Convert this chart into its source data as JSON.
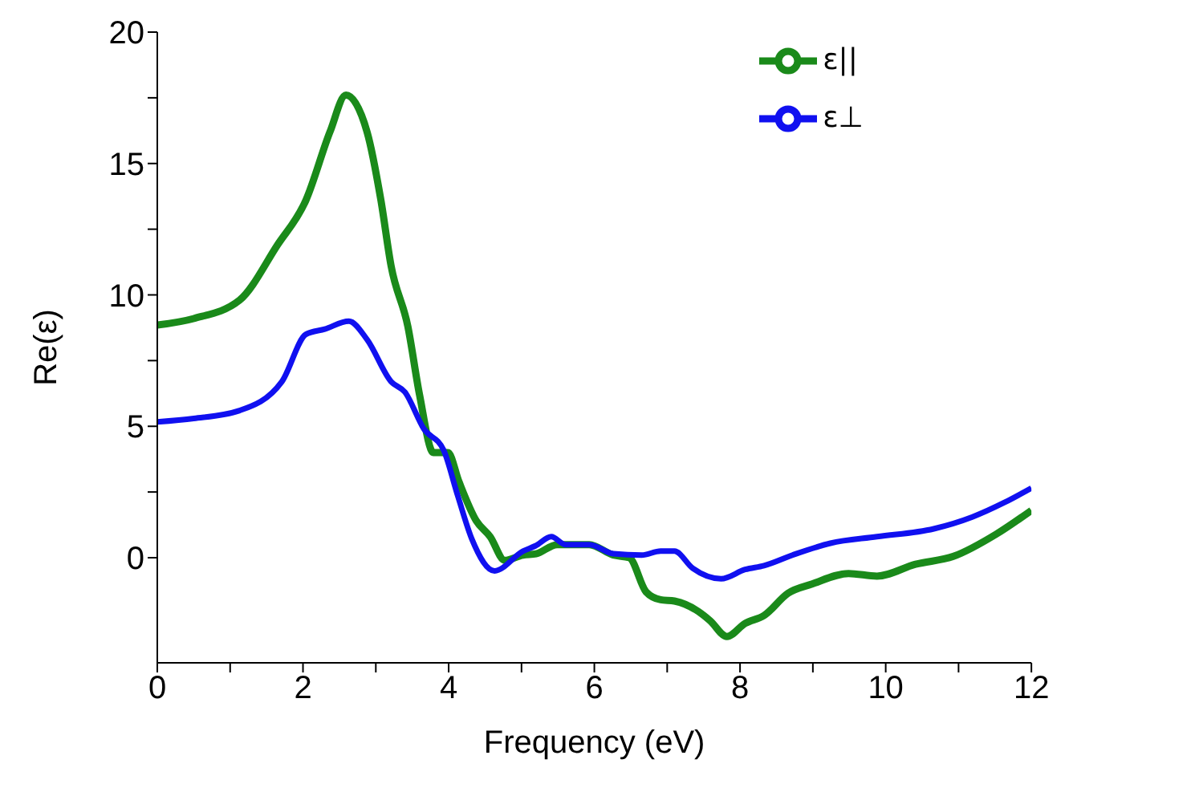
{
  "chart_data": {
    "type": "line",
    "xlabel": "Frequency (eV)",
    "ylabel": "Re(ε)",
    "xlim": [
      0,
      12
    ],
    "xticks": [
      0,
      {
        "value": 1,
        "label": null
      },
      2,
      {
        "value": 3,
        "label": null
      },
      4,
      {
        "value": 5,
        "label": null
      },
      6,
      {
        "value": 7,
        "label": null
      },
      8,
      {
        "value": 9,
        "label": null
      },
      10,
      {
        "value": 11,
        "label": null
      },
      12
    ],
    "ylim": [
      -4,
      20
    ],
    "yticks": [
      0,
      {
        "value": 2.5,
        "label": null
      },
      5,
      {
        "value": 7.5,
        "label": null
      },
      10,
      {
        "value": 12.5,
        "label": null
      },
      15,
      {
        "value": 17.5,
        "label": null
      },
      20
    ],
    "grid": false,
    "legend": "top right",
    "marker": "none",
    "line_style": "solid",
    "series": [
      {
        "name": "ε||",
        "color": "#1a8a1a",
        "x": [
          0,
          0.5,
          1.13,
          1.65,
          2.04,
          2.37,
          2.59,
          2.88,
          3.07,
          3.21,
          3.44,
          3.6,
          3.79,
          3.99,
          4.14,
          4.38,
          4.57,
          4.77,
          5.02,
          5.2,
          5.49,
          5.74,
          5.93,
          6.26,
          6.48,
          6.71,
          6.91,
          7.1,
          7.43,
          7.59,
          7.82,
          8.07,
          8.33,
          8.66,
          8.99,
          9.49,
          9.88,
          10.41,
          10.93,
          11.52,
          12
        ],
        "values": [
          8.85,
          9.1,
          9.8,
          11.9,
          13.6,
          16.2,
          17.6,
          16.2,
          13.6,
          11.1,
          8.8,
          6.2,
          4.0,
          4.0,
          2.9,
          1.4,
          0.8,
          -0.1,
          0.1,
          0.15,
          0.5,
          0.5,
          0.5,
          0.1,
          0,
          -1.3,
          -1.6,
          -1.65,
          -2.05,
          -2.4,
          -3.0,
          -2.5,
          -2.2,
          -1.35,
          -1.0,
          -0.6,
          -0.7,
          -0.25,
          0.05,
          0.9,
          1.8
        ]
      },
      {
        "name": "ε⊥",
        "color": "#1010f0",
        "x": [
          0,
          0.5,
          1.13,
          1.71,
          2.04,
          2.3,
          2.63,
          2.88,
          3.21,
          3.4,
          3.66,
          3.93,
          4.12,
          4.32,
          4.63,
          5.02,
          5.19,
          5.41,
          5.6,
          5.93,
          6.26,
          6.65,
          6.91,
          7.1,
          7.35,
          7.74,
          8.07,
          8.33,
          8.72,
          9.24,
          9.88,
          10.66,
          11.19,
          11.63,
          12
        ],
        "values": [
          5.17,
          5.3,
          5.6,
          6.7,
          8.5,
          8.7,
          9.0,
          8.3,
          6.7,
          6.3,
          4.9,
          4.1,
          2.4,
          0.7,
          -0.5,
          0.25,
          0.45,
          0.8,
          0.5,
          0.5,
          0.15,
          0.1,
          0.25,
          0.25,
          -0.4,
          -0.8,
          -0.45,
          -0.3,
          0.1,
          0.55,
          0.8,
          1.1,
          1.55,
          2.1,
          2.65
        ]
      }
    ]
  }
}
